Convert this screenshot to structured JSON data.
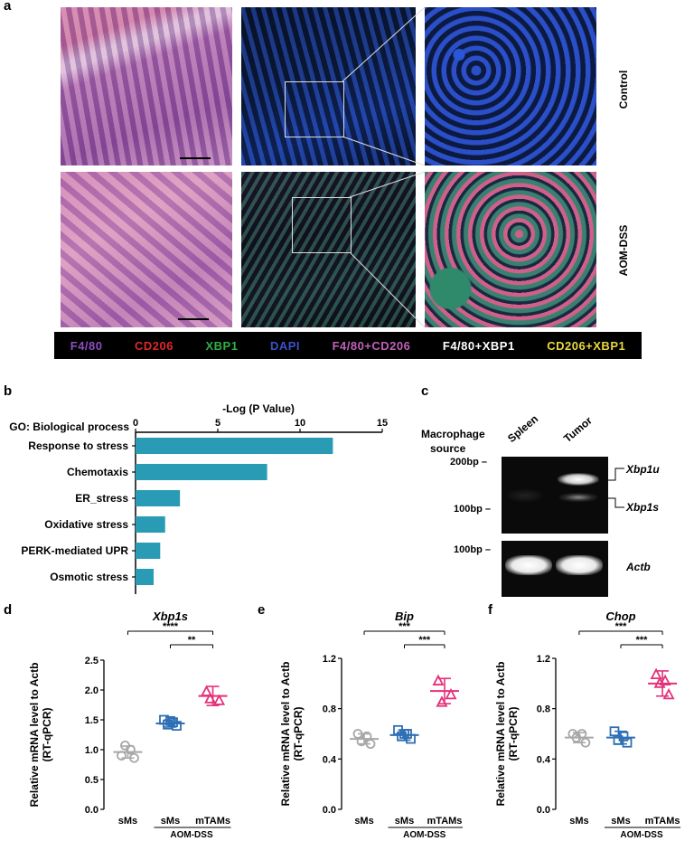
{
  "panel_a": {
    "label": "a",
    "row_labels": [
      "Control",
      "AOM-DSS"
    ],
    "legend": [
      {
        "text": "F4/80",
        "color": "#8a4fc0"
      },
      {
        "text": "CD206",
        "color": "#e0272b"
      },
      {
        "text": "XBP1",
        "color": "#2fb043"
      },
      {
        "text": "DAPI",
        "color": "#3a52c8"
      },
      {
        "text": "F4/80+CD206",
        "color": "#c060b8"
      },
      {
        "text": "F4/80+XBP1",
        "color": "#ffffff"
      },
      {
        "text": "CD206+XBP1",
        "color": "#e8d840"
      }
    ]
  },
  "panel_b": {
    "label": "b",
    "chart_data": {
      "type": "bar",
      "orientation": "horizontal",
      "title": "-Log (P Value)",
      "category_header": "GO: Biological process",
      "categories": [
        "Response to stress",
        "Chemotaxis",
        "ER_stress",
        "Oxidative stress",
        "PERK-mediated UPR",
        "Osmotic stress"
      ],
      "values": [
        12.0,
        8.0,
        2.7,
        1.8,
        1.5,
        1.1
      ],
      "xlim": [
        0,
        15
      ],
      "xticks": [
        "0",
        "5",
        "10",
        "15"
      ],
      "color": "#2a9bb5"
    }
  },
  "panel_c": {
    "label": "c",
    "source_label": [
      "Macrophage",
      "source"
    ],
    "lanes": [
      "Spleen",
      "Tumor"
    ],
    "markers_top": [
      "200bp",
      "100bp"
    ],
    "marker_bottom": "100bp",
    "bands": [
      "Xbp1u",
      "Xbp1s"
    ],
    "loading": "Actb"
  },
  "panel_d": {
    "label": "d",
    "chart_data": {
      "type": "scatter",
      "title": "Xbp1s",
      "ylabel_lines": [
        "Relative mRNA level to Actb",
        "(RT-qPCR)"
      ],
      "categories": [
        "sMs",
        "sMs",
        "mTAMs"
      ],
      "group_label": "AOM-DSS",
      "ylim": [
        0.0,
        2.5
      ],
      "yticks": [
        "0.0",
        "0.5",
        "1.0",
        "1.5",
        "2.0",
        "2.5"
      ],
      "points": [
        [
          0.9,
          0.86,
          1.07,
          1.0
        ],
        [
          1.5,
          1.4,
          1.42,
          1.46,
          1.48
        ],
        [
          1.97,
          1.82,
          1.85
        ]
      ],
      "means": [
        0.96,
        1.44,
        1.9
      ],
      "sd": [
        0.1,
        0.06,
        0.16
      ],
      "significance": [
        {
          "from": 0,
          "to": 2,
          "text": "****"
        },
        {
          "from": 1,
          "to": 2,
          "text": "**"
        }
      ]
    }
  },
  "panel_e": {
    "label": "e",
    "chart_data": {
      "type": "scatter",
      "title": "Bip",
      "ylabel_lines": [
        "Relative mRNA level to Actb",
        "(RT-qPCR)"
      ],
      "categories": [
        "sMs",
        "sMs",
        "mTAMs"
      ],
      "group_label": "AOM-DSS",
      "ylim": [
        0.0,
        1.2
      ],
      "yticks": [
        "0.0",
        "0.4",
        "0.8",
        "1.2"
      ],
      "points": [
        [
          0.6,
          0.52,
          0.54,
          0.58
        ],
        [
          0.63,
          0.56,
          0.58,
          0.6,
          0.6
        ],
        [
          1.02,
          0.91,
          0.85
        ]
      ],
      "means": [
        0.56,
        0.59,
        0.94
      ],
      "sd": [
        0.04,
        0.04,
        0.1
      ],
      "significance": [
        {
          "from": 0,
          "to": 2,
          "text": "***"
        },
        {
          "from": 1,
          "to": 2,
          "text": "***"
        }
      ]
    }
  },
  "panel_f": {
    "label": "f",
    "chart_data": {
      "type": "scatter",
      "title": "Chop",
      "ylabel_lines": [
        "Relative mRNA level to Actb",
        "(RT-qPCR)"
      ],
      "categories": [
        "sMs",
        "sMs",
        "mTAMs"
      ],
      "group_label": "AOM-DSS",
      "ylim": [
        0.0,
        1.2
      ],
      "yticks": [
        "0.0",
        "0.4",
        "0.8",
        "1.2"
      ],
      "points": [
        [
          0.6,
          0.53,
          0.57,
          0.6
        ],
        [
          0.62,
          0.53,
          0.55,
          0.58
        ],
        [
          1.07,
          0.91,
          1.0,
          1.02
        ]
      ],
      "means": [
        0.57,
        0.57,
        1.0
      ],
      "sd": [
        0.04,
        0.05,
        0.1
      ],
      "significance": [
        {
          "from": 0,
          "to": 2,
          "text": "***"
        },
        {
          "from": 1,
          "to": 2,
          "text": "***"
        }
      ]
    }
  }
}
